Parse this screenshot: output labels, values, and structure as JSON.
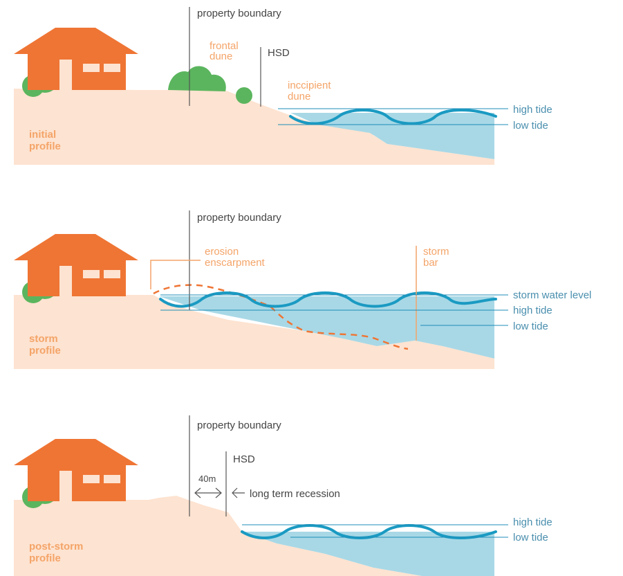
{
  "colors": {
    "sand": "#fde3d1",
    "water": "#a8d8e6",
    "wave": "#1a9ac2",
    "house": "#ef7534",
    "bush": "#5bb55e",
    "window": "#fde3d1",
    "line_dark": "#555555",
    "line_blue": "#1d8db8",
    "dune_dash": "#ef7534"
  },
  "panels": {
    "initial": {
      "profile_label": [
        "initial",
        "profile"
      ],
      "property_boundary": "property boundary",
      "frontal_dune": [
        "frontal",
        "dune"
      ],
      "hsd": "HSD",
      "incipient_dune": [
        "inccipient",
        "dune"
      ],
      "high_tide": "high tide",
      "low_tide": "low tide"
    },
    "storm": {
      "profile_label": [
        "storm",
        "profile"
      ],
      "property_boundary": "property boundary",
      "erosion_escarpment": [
        "erosion",
        "enscarpment"
      ],
      "storm_bar": [
        "storm",
        "bar"
      ],
      "storm_water_level": "storm water level",
      "high_tide": "high tide",
      "low_tide": "low tide"
    },
    "post_storm": {
      "profile_label": [
        "post-storm",
        "profile"
      ],
      "property_boundary": "property boundary",
      "hsd": "HSD",
      "distance": "40m",
      "recession": "long term recession",
      "high_tide": "high tide",
      "low_tide": "low tide"
    }
  }
}
